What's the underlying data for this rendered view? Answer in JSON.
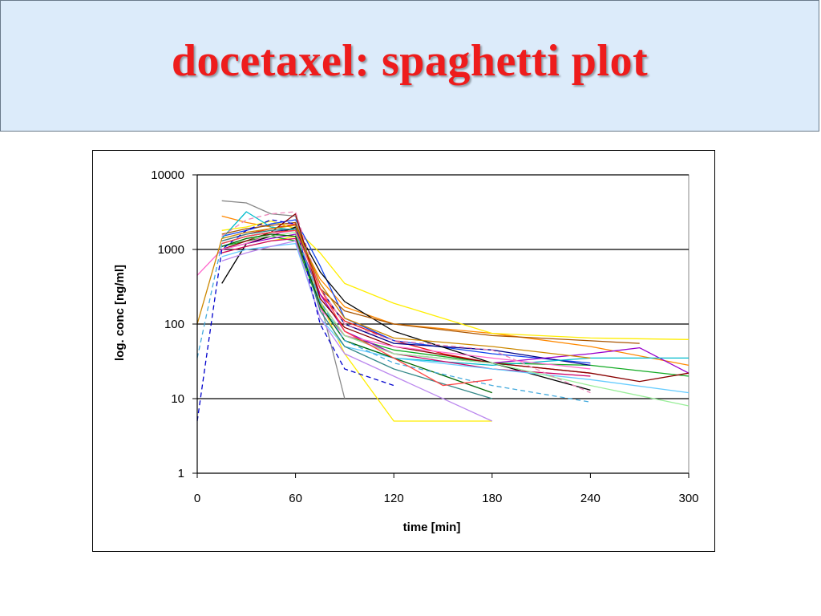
{
  "slide": {
    "title": "docetaxel: spaghetti plot"
  },
  "chart_data": {
    "type": "line",
    "xlabel": "time  [min]",
    "ylabel": "log. conc [ng/ml]",
    "xlim": [
      0,
      300
    ],
    "ylim": [
      1,
      10000
    ],
    "yscale": "log",
    "x_ticks": [
      0,
      60,
      120,
      180,
      240,
      300
    ],
    "x_tick_labels": [
      "0",
      "60",
      "120",
      "180",
      "240",
      "300"
    ],
    "y_ticks": [
      1,
      10,
      100,
      1000,
      10000
    ],
    "y_tick_labels": [
      "1",
      "10",
      "100",
      "1000",
      "10000"
    ],
    "grid": "horizontal major",
    "legend": "none",
    "series": [
      {
        "color": "#ee1111",
        "dashed": false,
        "x": [
          15,
          30,
          45,
          60,
          75,
          90,
          120,
          150,
          180,
          240
        ],
        "y": [
          1300,
          1600,
          1900,
          2200,
          250,
          110,
          60,
          40,
          30,
          22
        ]
      },
      {
        "color": "#ff8800",
        "dashed": false,
        "x": [
          15,
          30,
          45,
          60,
          75,
          90,
          120,
          180,
          240,
          300
        ],
        "y": [
          2800,
          2300,
          2000,
          1800,
          400,
          170,
          100,
          75,
          50,
          28
        ]
      },
      {
        "color": "#ffee00",
        "dashed": false,
        "x": [
          15,
          30,
          45,
          60,
          75,
          90,
          120,
          180,
          240,
          300
        ],
        "y": [
          1800,
          2000,
          2400,
          1900,
          900,
          350,
          190,
          75,
          65,
          62
        ]
      },
      {
        "color": "#ffee00",
        "dashed": false,
        "x": [
          15,
          30,
          45,
          60,
          75,
          90,
          120,
          180
        ],
        "y": [
          900,
          1100,
          1300,
          1500,
          200,
          40,
          5,
          5
        ]
      },
      {
        "color": "#11aa22",
        "dashed": false,
        "x": [
          15,
          30,
          45,
          60,
          75,
          90,
          120,
          180,
          240,
          300
        ],
        "y": [
          1100,
          1300,
          1500,
          1300,
          170,
          70,
          45,
          30,
          28,
          20
        ]
      },
      {
        "color": "#1144ee",
        "dashed": false,
        "x": [
          15,
          30,
          45,
          60,
          75,
          90,
          120,
          180,
          240
        ],
        "y": [
          1500,
          1800,
          2200,
          2500,
          600,
          120,
          60,
          40,
          30
        ]
      },
      {
        "color": "#000088",
        "dashed": false,
        "x": [
          15,
          30,
          45,
          60,
          75,
          90,
          120,
          180,
          240
        ],
        "y": [
          1200,
          1500,
          1700,
          1900,
          300,
          100,
          55,
          45,
          28
        ]
      },
      {
        "color": "#9900cc",
        "dashed": false,
        "x": [
          15,
          30,
          45,
          60,
          75,
          90,
          120,
          180,
          240,
          270,
          300
        ],
        "y": [
          1000,
          1200,
          1400,
          1600,
          250,
          80,
          40,
          30,
          40,
          48,
          22
        ]
      },
      {
        "color": "#00bbcc",
        "dashed": false,
        "x": [
          15,
          30,
          45,
          60,
          75,
          90,
          120,
          180,
          240,
          300
        ],
        "y": [
          1400,
          3200,
          2000,
          1800,
          180,
          60,
          35,
          28,
          35,
          35
        ]
      },
      {
        "color": "#888888",
        "dashed": false,
        "x": [
          15,
          30,
          45,
          60,
          75,
          90
        ],
        "y": [
          4500,
          4200,
          3000,
          2800,
          200,
          10
        ]
      },
      {
        "color": "#000000",
        "dashed": false,
        "x": [
          15,
          30,
          45,
          60,
          75,
          90,
          120,
          180,
          240
        ],
        "y": [
          350,
          1200,
          1500,
          2000,
          500,
          200,
          80,
          30,
          13
        ]
      },
      {
        "color": "#aa5500",
        "dashed": false,
        "x": [
          15,
          30,
          45,
          60,
          75,
          90,
          120,
          180,
          270
        ],
        "y": [
          1600,
          1900,
          2100,
          2300,
          300,
          150,
          100,
          70,
          55
        ]
      },
      {
        "color": "#880000",
        "dashed": false,
        "x": [
          15,
          30,
          45,
          60,
          75,
          90,
          120,
          180,
          240,
          270,
          300
        ],
        "y": [
          1000,
          1300,
          1700,
          3000,
          220,
          90,
          50,
          30,
          22,
          17,
          22
        ]
      },
      {
        "color": "#ff66cc",
        "dashed": false,
        "x": [
          0,
          15,
          30,
          45,
          60,
          75,
          90,
          120,
          180,
          240
        ],
        "y": [
          450,
          1000,
          1200,
          1600,
          1800,
          160,
          70,
          50,
          35,
          25
        ]
      },
      {
        "color": "#cc0066",
        "dashed": false,
        "x": [
          15,
          30,
          45,
          60,
          75,
          90,
          120,
          180,
          240
        ],
        "y": [
          900,
          1100,
          1300,
          1400,
          200,
          70,
          40,
          25,
          20
        ]
      },
      {
        "color": "#66ccff",
        "dashed": false,
        "x": [
          15,
          30,
          45,
          60,
          75,
          90,
          120,
          180,
          240,
          300
        ],
        "y": [
          800,
          1000,
          1100,
          1200,
          120,
          50,
          35,
          25,
          18,
          12
        ]
      },
      {
        "color": "#99ee99",
        "dashed": false,
        "x": [
          15,
          30,
          45,
          60,
          75,
          90,
          120,
          180,
          240,
          300
        ],
        "y": [
          1100,
          1400,
          1500,
          1700,
          200,
          70,
          40,
          30,
          15,
          8
        ]
      },
      {
        "color": "#338888",
        "dashed": false,
        "x": [
          15,
          30,
          45,
          60,
          75,
          90,
          120,
          180
        ],
        "y": [
          1300,
          1600,
          1800,
          1900,
          150,
          50,
          25,
          10
        ]
      },
      {
        "color": "#bb88ee",
        "dashed": false,
        "x": [
          15,
          30,
          45,
          60,
          75,
          90,
          120,
          180
        ],
        "y": [
          700,
          900,
          1100,
          1300,
          120,
          40,
          20,
          5
        ]
      },
      {
        "color": "#006600",
        "dashed": false,
        "x": [
          15,
          30,
          45,
          60,
          75,
          90,
          120,
          180
        ],
        "y": [
          1100,
          1400,
          1600,
          1500,
          180,
          60,
          35,
          12
        ]
      },
      {
        "color": "#0000cc",
        "dashed": true,
        "x": [
          0,
          15,
          30,
          45,
          60,
          75,
          90,
          120
        ],
        "y": [
          5,
          1000,
          1800,
          2500,
          2200,
          100,
          25,
          15
        ]
      },
      {
        "color": "#ee88bb",
        "dashed": true,
        "x": [
          15,
          30,
          45,
          60,
          75,
          90,
          120,
          180,
          240
        ],
        "y": [
          1500,
          2500,
          3000,
          3200,
          300,
          100,
          60,
          45,
          12
        ]
      },
      {
        "color": "#44aadd",
        "dashed": true,
        "x": [
          0,
          15,
          30,
          45,
          60,
          75,
          90,
          120,
          180,
          240
        ],
        "y": [
          35,
          1200,
          1500,
          1700,
          1800,
          200,
          60,
          30,
          15,
          9
        ]
      },
      {
        "color": "#ff4444",
        "dashed": false,
        "x": [
          15,
          30,
          45,
          60,
          75,
          90,
          120,
          150,
          180
        ],
        "y": [
          1200,
          1500,
          1700,
          1800,
          300,
          80,
          35,
          15,
          18
        ]
      },
      {
        "color": "#cc8800",
        "dashed": false,
        "x": [
          0,
          15,
          30,
          45,
          60,
          75,
          90,
          120,
          180,
          240
        ],
        "y": [
          100,
          1400,
          1700,
          1900,
          2100,
          350,
          120,
          65,
          50,
          35
        ]
      }
    ]
  }
}
